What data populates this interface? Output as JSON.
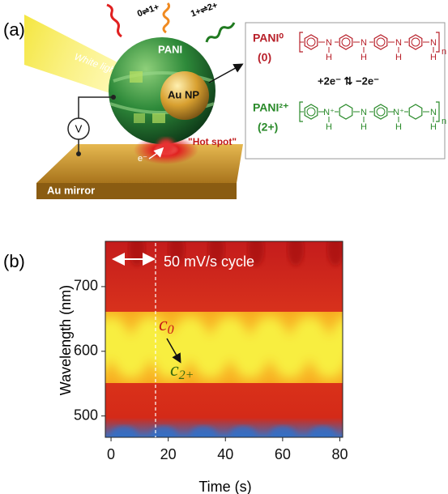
{
  "panel_a": {
    "label": "(a)",
    "white_light": "White light",
    "pani": "PANI",
    "transition_1": "0⇌1+",
    "transition_2": "1+⇌2+",
    "au_np": "Au NP",
    "hot_spot": "\"Hot spot\"",
    "electron": "e⁻",
    "mirror": "Au mirror",
    "voltmeter": "V",
    "scheme": {
      "reduced": {
        "name": "PANI⁰",
        "state": "(0)",
        "atoms": [
          "N",
          "N",
          "N",
          "N"
        ],
        "hydrogens": [
          "H",
          "H",
          "H",
          "H"
        ],
        "repeat": "n"
      },
      "redox": "+2e⁻ ⇅ −2e⁻",
      "oxidized": {
        "name": "PANI²⁺",
        "state": "(2+)",
        "atoms": [
          "N⁺",
          "N",
          "N⁺",
          "N"
        ],
        "hydrogens": [
          "H",
          "H",
          "H",
          "H"
        ],
        "repeat": "n"
      }
    }
  },
  "chart_data": {
    "type": "heatmap",
    "panel_label": "(b)",
    "xlabel": "Time (s)",
    "ylabel": "Wavelength (nm)",
    "xlim": [
      -2,
      81
    ],
    "ylim": [
      467,
      770
    ],
    "xticks": [
      0,
      20,
      40,
      60,
      80
    ],
    "yticks": [
      500,
      600,
      700
    ],
    "annotations": {
      "cycle": "50 mV/s cycle",
      "start": {
        "symbol": "c",
        "subscript": "0"
      },
      "end": {
        "symbol": "c",
        "subscript": "2+"
      }
    }
  }
}
